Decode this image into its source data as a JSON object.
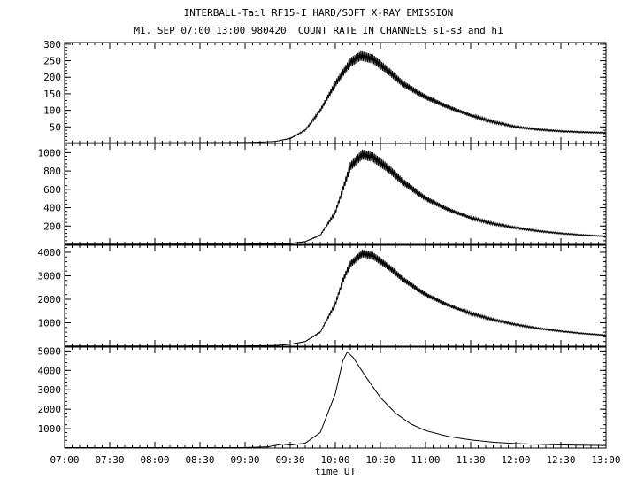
{
  "title": "INTERBALL-Tail RF15-I HARD/SOFT X-RAY EMISSION",
  "subtitle": "M1. SEP 07:00 13:00 980420  COUNT RATE IN CHANNELS s1-s3 and h1",
  "chart_data": {
    "type": "line",
    "xlabel": "time UT",
    "xlim": [
      "07:00",
      "13:00"
    ],
    "x_ticks": [
      "07:00",
      "07:30",
      "08:00",
      "08:30",
      "09:00",
      "09:30",
      "10:00",
      "10:30",
      "11:00",
      "11:30",
      "12:00",
      "12:30",
      "13:00"
    ],
    "grid": false,
    "panels": [
      {
        "ylim": [
          0,
          305
        ],
        "y_ticks": [
          "50",
          "100",
          "150",
          "200",
          "250",
          "300"
        ],
        "y_tick_values": [
          50,
          100,
          150,
          200,
          250,
          300
        ],
        "base_level": 2,
        "oscillation_amplitude": 15,
        "points": [
          [
            "07:00",
            2
          ],
          [
            "08:00",
            2
          ],
          [
            "09:00",
            3
          ],
          [
            "09:10",
            4
          ],
          [
            "09:20",
            6
          ],
          [
            "09:30",
            15
          ],
          [
            "09:40",
            40
          ],
          [
            "09:50",
            100
          ],
          [
            "10:00",
            180
          ],
          [
            "10:10",
            245
          ],
          [
            "10:17",
            265
          ],
          [
            "10:25",
            255
          ],
          [
            "10:35",
            220
          ],
          [
            "10:45",
            180
          ],
          [
            "11:00",
            140
          ],
          [
            "11:15",
            110
          ],
          [
            "11:30",
            85
          ],
          [
            "11:45",
            65
          ],
          [
            "12:00",
            50
          ],
          [
            "12:15",
            42
          ],
          [
            "12:30",
            37
          ],
          [
            "12:45",
            34
          ],
          [
            "13:00",
            32
          ]
        ]
      },
      {
        "ylim": [
          0,
          1100
        ],
        "y_ticks": [
          "200",
          "400",
          "600",
          "800",
          "1000"
        ],
        "y_tick_values": [
          200,
          400,
          600,
          800,
          1000
        ],
        "base_level": 3,
        "oscillation_amplitude": 55,
        "points": [
          [
            "07:00",
            3
          ],
          [
            "08:00",
            3
          ],
          [
            "09:00",
            4
          ],
          [
            "09:20",
            6
          ],
          [
            "09:30",
            10
          ],
          [
            "09:40",
            30
          ],
          [
            "09:50",
            100
          ],
          [
            "10:00",
            350
          ],
          [
            "10:05",
            600
          ],
          [
            "10:10",
            850
          ],
          [
            "10:18",
            980
          ],
          [
            "10:25",
            950
          ],
          [
            "10:35",
            830
          ],
          [
            "10:45",
            680
          ],
          [
            "11:00",
            500
          ],
          [
            "11:15",
            380
          ],
          [
            "11:30",
            290
          ],
          [
            "11:45",
            225
          ],
          [
            "12:00",
            180
          ],
          [
            "12:15",
            145
          ],
          [
            "12:30",
            120
          ],
          [
            "12:45",
            102
          ],
          [
            "13:00",
            88
          ]
        ]
      },
      {
        "ylim": [
          0,
          4300
        ],
        "y_ticks": [
          "1000",
          "2000",
          "3000",
          "4000"
        ],
        "y_tick_values": [
          1000,
          2000,
          3000,
          4000
        ],
        "base_level": 10,
        "oscillation_amplitude": 160,
        "points": [
          [
            "07:00",
            10
          ],
          [
            "08:00",
            10
          ],
          [
            "09:00",
            15
          ],
          [
            "09:20",
            30
          ],
          [
            "09:30",
            80
          ],
          [
            "09:40",
            200
          ],
          [
            "09:50",
            600
          ],
          [
            "10:00",
            1800
          ],
          [
            "10:05",
            2800
          ],
          [
            "10:10",
            3500
          ],
          [
            "10:18",
            3950
          ],
          [
            "10:25",
            3850
          ],
          [
            "10:35",
            3400
          ],
          [
            "10:45",
            2850
          ],
          [
            "11:00",
            2200
          ],
          [
            "11:15",
            1750
          ],
          [
            "11:30",
            1400
          ],
          [
            "11:45",
            1130
          ],
          [
            "12:00",
            920
          ],
          [
            "12:15",
            760
          ],
          [
            "12:30",
            640
          ],
          [
            "12:45",
            540
          ],
          [
            "13:00",
            470
          ]
        ]
      },
      {
        "ylim": [
          0,
          5200
        ],
        "y_ticks": [
          "1000",
          "2000",
          "3000",
          "4000",
          "5000"
        ],
        "y_tick_values": [
          1000,
          2000,
          3000,
          4000,
          5000
        ],
        "base_level": 20,
        "oscillation_amplitude": 0,
        "points": [
          [
            "07:00",
            20
          ],
          [
            "08:00",
            20
          ],
          [
            "09:00",
            25
          ],
          [
            "09:15",
            60
          ],
          [
            "09:25",
            200
          ],
          [
            "09:30",
            150
          ],
          [
            "09:40",
            250
          ],
          [
            "09:50",
            800
          ],
          [
            "10:00",
            2800
          ],
          [
            "10:05",
            4500
          ],
          [
            "10:08",
            4950
          ],
          [
            "10:12",
            4650
          ],
          [
            "10:20",
            3700
          ],
          [
            "10:30",
            2600
          ],
          [
            "10:40",
            1800
          ],
          [
            "10:50",
            1250
          ],
          [
            "11:00",
            900
          ],
          [
            "11:15",
            600
          ],
          [
            "11:30",
            420
          ],
          [
            "11:45",
            300
          ],
          [
            "12:00",
            230
          ],
          [
            "12:30",
            160
          ],
          [
            "13:00",
            130
          ]
        ]
      }
    ]
  }
}
